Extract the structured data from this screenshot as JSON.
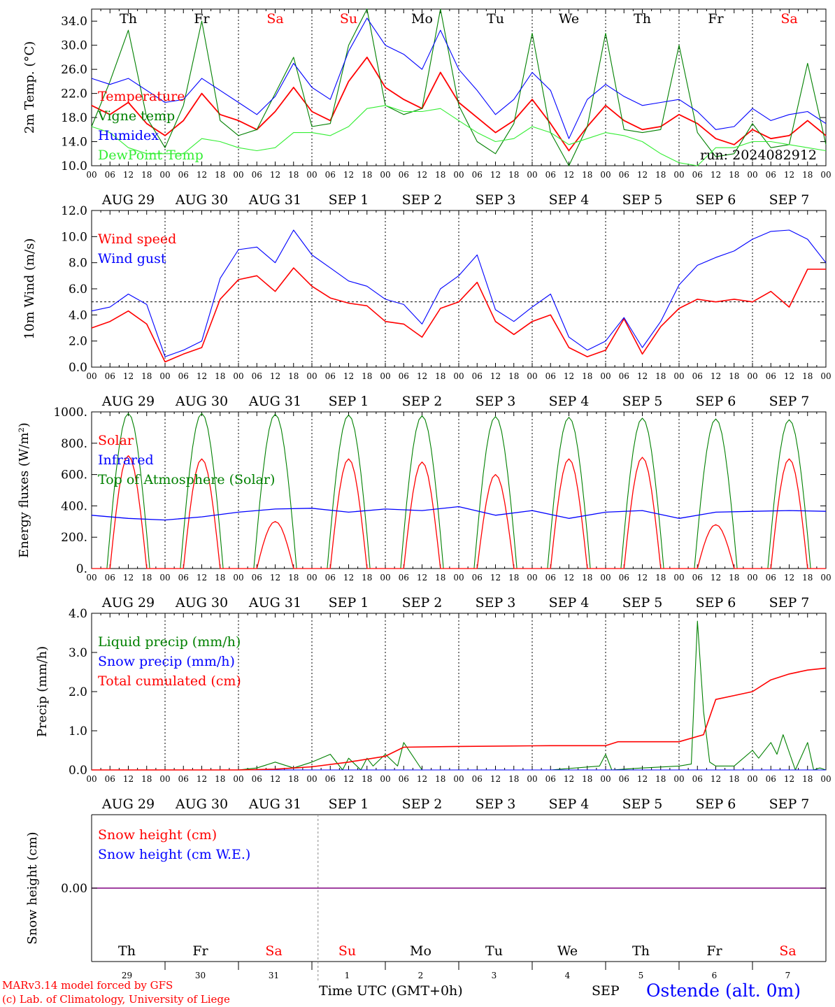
{
  "meta": {
    "run": "run: 2024082912",
    "credits": [
      "MARv3.14 model forced by GFS",
      "(c) Lab. of Climatology, University of Liege"
    ],
    "time_label": "Time UTC (GMT+0h)",
    "month_label": "SEP",
    "station": "Ostende (alt. 0m)"
  },
  "days": {
    "abbr": [
      "Th",
      "Fr",
      "Sa",
      "Su",
      "Mo",
      "Tu",
      "We",
      "Th",
      "Fr",
      "Sa"
    ],
    "weekend": [
      false,
      false,
      true,
      true,
      false,
      false,
      false,
      false,
      false,
      true
    ],
    "dates": [
      "AUG 29",
      "AUG 30",
      "AUG 31",
      "SEP  1",
      "SEP  2",
      "SEP  3",
      "SEP  4",
      "SEP  5",
      "SEP  6",
      "SEP  7"
    ],
    "day_numbers": [
      "29",
      "30",
      "31",
      "1",
      "2",
      "3",
      "4",
      "5",
      "6",
      "7"
    ],
    "hour_ticks": [
      "00",
      "06",
      "12",
      "18"
    ]
  },
  "colors": {
    "red": "#ff0000",
    "green": "#008000",
    "blue": "#0000ff",
    "lightgreen": "#33ee33",
    "purple": "#800080"
  },
  "chart_data": [
    {
      "type": "line",
      "ylabel": "2m Temp. (°C)",
      "ylim": [
        10,
        36
      ],
      "yticks": [
        "34.0",
        "30.0",
        "26.0",
        "22.0",
        "18.0",
        "14.0",
        "10.0"
      ],
      "ytick_values": [
        34,
        30,
        26,
        22,
        18,
        14,
        10
      ],
      "x_hours": [
        0,
        6,
        12,
        18,
        24,
        30,
        36,
        42,
        48,
        54,
        60,
        66,
        72,
        78,
        84,
        90,
        96,
        102,
        108,
        114,
        120,
        126,
        132,
        138,
        144,
        150,
        156,
        162,
        168,
        174,
        180,
        186,
        192,
        198,
        204,
        210,
        216,
        222,
        228,
        234,
        240
      ],
      "series": [
        {
          "name": "Temperature",
          "color": "#ff0000",
          "values": [
            20,
            18.5,
            20.5,
            17,
            15,
            17.5,
            22,
            18.5,
            17.5,
            16,
            19,
            23,
            19,
            17.5,
            24,
            28,
            23,
            21,
            19.5,
            25.5,
            20.5,
            18,
            15.5,
            17.5,
            21,
            17,
            12.5,
            16.5,
            20,
            17.5,
            16,
            16.5,
            18.5,
            17,
            14.5,
            13.5,
            16,
            14.5,
            15,
            17.5,
            15
          ]
        },
        {
          "name": "Vigne temp",
          "color": "#008000",
          "values": [
            16.5,
            24,
            32.5,
            18,
            13,
            20,
            34,
            17.5,
            15,
            16,
            22,
            28,
            16.5,
            17,
            30,
            36,
            20,
            18.5,
            19.5,
            36,
            20,
            14,
            12,
            17,
            32,
            15.5,
            10,
            16.5,
            32,
            16,
            15.5,
            16,
            30,
            15.5,
            11.5,
            12,
            17,
            13,
            13.5,
            27,
            13.5
          ]
        },
        {
          "name": "Humidex",
          "color": "#0000ff",
          "values": [
            24.5,
            23.5,
            24.5,
            22.5,
            20.5,
            21,
            24.5,
            22.5,
            20.5,
            18.5,
            21.5,
            27,
            23,
            21,
            29,
            34.5,
            30,
            28.5,
            26,
            32.5,
            26,
            22.5,
            18.5,
            21,
            25.5,
            22.5,
            14.5,
            21,
            23.5,
            21.5,
            20,
            20.5,
            21,
            19,
            16,
            16.5,
            19.5,
            17.5,
            18.5,
            19,
            17
          ]
        },
        {
          "name": "DewPoint Temp",
          "color": "#33ee33",
          "values": [
            16.5,
            15.5,
            13,
            12,
            12,
            12,
            14.5,
            14,
            13,
            12.5,
            13,
            15.5,
            15.5,
            15,
            16.5,
            19.5,
            20,
            19,
            19,
            19.5,
            17.5,
            15.5,
            14,
            14.5,
            16.5,
            15.5,
            13.5,
            14.5,
            15.5,
            15,
            14,
            12,
            10.5,
            10,
            13,
            13,
            14,
            14,
            13.5,
            13,
            12.5
          ]
        }
      ]
    },
    {
      "type": "line",
      "ylabel": "10m Wind (m/s)",
      "ylim": [
        0,
        12
      ],
      "yticks": [
        "12.0",
        "10.0",
        "8.0",
        "6.0",
        "4.0",
        "2.0",
        "0.0"
      ],
      "ytick_values": [
        12,
        10,
        8,
        6,
        4,
        2,
        0
      ],
      "ref_line": 5,
      "x_hours": [
        0,
        6,
        12,
        18,
        24,
        30,
        36,
        42,
        48,
        54,
        60,
        66,
        72,
        78,
        84,
        90,
        96,
        102,
        108,
        114,
        120,
        126,
        132,
        138,
        144,
        150,
        156,
        162,
        168,
        174,
        180,
        186,
        192,
        198,
        204,
        210,
        216,
        222,
        228,
        234,
        240
      ],
      "series": [
        {
          "name": "Wind speed",
          "color": "#ff0000",
          "values": [
            3,
            3.5,
            4.3,
            3.3,
            0.4,
            1,
            1.5,
            5.2,
            6.7,
            7,
            5.8,
            7.6,
            6.2,
            5.3,
            4.9,
            4.7,
            3.5,
            3.3,
            2.3,
            4.5,
            5,
            6.5,
            3.5,
            2.5,
            3.5,
            4,
            1.5,
            0.8,
            1.3,
            3.7,
            1,
            3.1,
            4.5,
            5.2,
            5,
            5.2,
            5,
            5.8,
            4.6,
            7.5,
            7.5
          ]
        },
        {
          "name": "Wind gust",
          "color": "#0000ff",
          "values": [
            4.3,
            4.6,
            5.6,
            4.8,
            0.8,
            1.3,
            2,
            6.8,
            9,
            9.2,
            8,
            10.5,
            8.6,
            7.6,
            6.6,
            6.2,
            5.2,
            4.8,
            3.3,
            6,
            7,
            8.6,
            4.4,
            3.5,
            4.6,
            5.6,
            2.3,
            1.3,
            2,
            3.8,
            1.5,
            3.5,
            6.3,
            7.8,
            8.4,
            8.9,
            9.8,
            10.4,
            10.5,
            9.8,
            8
          ]
        }
      ]
    },
    {
      "type": "line",
      "ylabel": "Energy fluxes (W/m²)",
      "ylim": [
        0,
        1000
      ],
      "yticks": [
        "1000.",
        "800.",
        "600.",
        "400.",
        "200.",
        "0."
      ],
      "ytick_values": [
        1000,
        800,
        600,
        400,
        200,
        0
      ],
      "daily_peaks": {
        "Solar": [
          720,
          700,
          300,
          700,
          680,
          600,
          700,
          710,
          280,
          700
        ],
        "Top of Atmosphere (Solar)": [
          990,
          990,
          985,
          980,
          975,
          970,
          965,
          960,
          955,
          950
        ]
      },
      "series": [
        {
          "name": "Solar",
          "color": "#ff0000"
        },
        {
          "name": "Infrared",
          "color": "#0000ff",
          "x_hours": [
            0,
            12,
            24,
            36,
            48,
            60,
            72,
            84,
            96,
            108,
            120,
            132,
            144,
            156,
            168,
            180,
            192,
            204,
            216,
            228,
            240
          ],
          "values": [
            340,
            320,
            310,
            330,
            360,
            380,
            385,
            360,
            380,
            370,
            395,
            340,
            370,
            320,
            360,
            370,
            320,
            360,
            365,
            370,
            365
          ]
        },
        {
          "name": "Top of Atmosphere (Solar)",
          "color": "#008000"
        }
      ]
    },
    {
      "type": "line",
      "ylabel": "Precip (mm/h)",
      "ylim": [
        0,
        4
      ],
      "yticks": [
        "4.0",
        "3.0",
        "2.0",
        "1.0",
        "0.0"
      ],
      "ytick_values": [
        4,
        3,
        2,
        1,
        0
      ],
      "series": [
        {
          "name": "Liquid precip (mm/h)",
          "color": "#008000",
          "x_hours": [
            0,
            48,
            54,
            60,
            66,
            72,
            78,
            82,
            84,
            88,
            90,
            92,
            96,
            100,
            102,
            108,
            120,
            150,
            166,
            168,
            170,
            180,
            192,
            196,
            198,
            200,
            202,
            204,
            210,
            216,
            218,
            222,
            224,
            226,
            230,
            234,
            236,
            238,
            240
          ],
          "values": [
            0,
            0,
            0.05,
            0.2,
            0.05,
            0.2,
            0.4,
            0,
            0.3,
            0,
            0.3,
            0.1,
            0.4,
            0.1,
            0.7,
            0,
            0,
            0,
            0.1,
            0.4,
            0,
            0.05,
            0.1,
            0.15,
            3.8,
            1.5,
            0.2,
            0.1,
            0.1,
            0.5,
            0.3,
            0.7,
            0.4,
            0.9,
            0,
            0.7,
            0,
            0.05,
            0
          ]
        },
        {
          "name": "Snow precip (mm/h)",
          "color": "#0000ff",
          "x_hours": [
            0,
            240
          ],
          "values": [
            0,
            0
          ]
        },
        {
          "name": "Total cumulated (cm)",
          "color": "#ff0000",
          "x_hours": [
            0,
            48,
            60,
            72,
            84,
            96,
            102,
            120,
            150,
            168,
            172,
            192,
            200,
            204,
            210,
            216,
            222,
            228,
            234,
            240
          ],
          "values": [
            0,
            0,
            0.02,
            0.08,
            0.2,
            0.35,
            0.58,
            0.6,
            0.62,
            0.62,
            0.72,
            0.72,
            0.9,
            1.8,
            1.9,
            2,
            2.3,
            2.45,
            2.55,
            2.6
          ]
        }
      ]
    },
    {
      "type": "line",
      "ylabel": "Snow height (cm)",
      "yticks": [
        "0.00"
      ],
      "ytick_values": [
        0
      ],
      "series": [
        {
          "name": "Snow height (cm)",
          "color": "#ff0000"
        },
        {
          "name": "Snow height (cm W.E.)",
          "color": "#0000ff"
        }
      ],
      "values": [
        0
      ]
    }
  ]
}
